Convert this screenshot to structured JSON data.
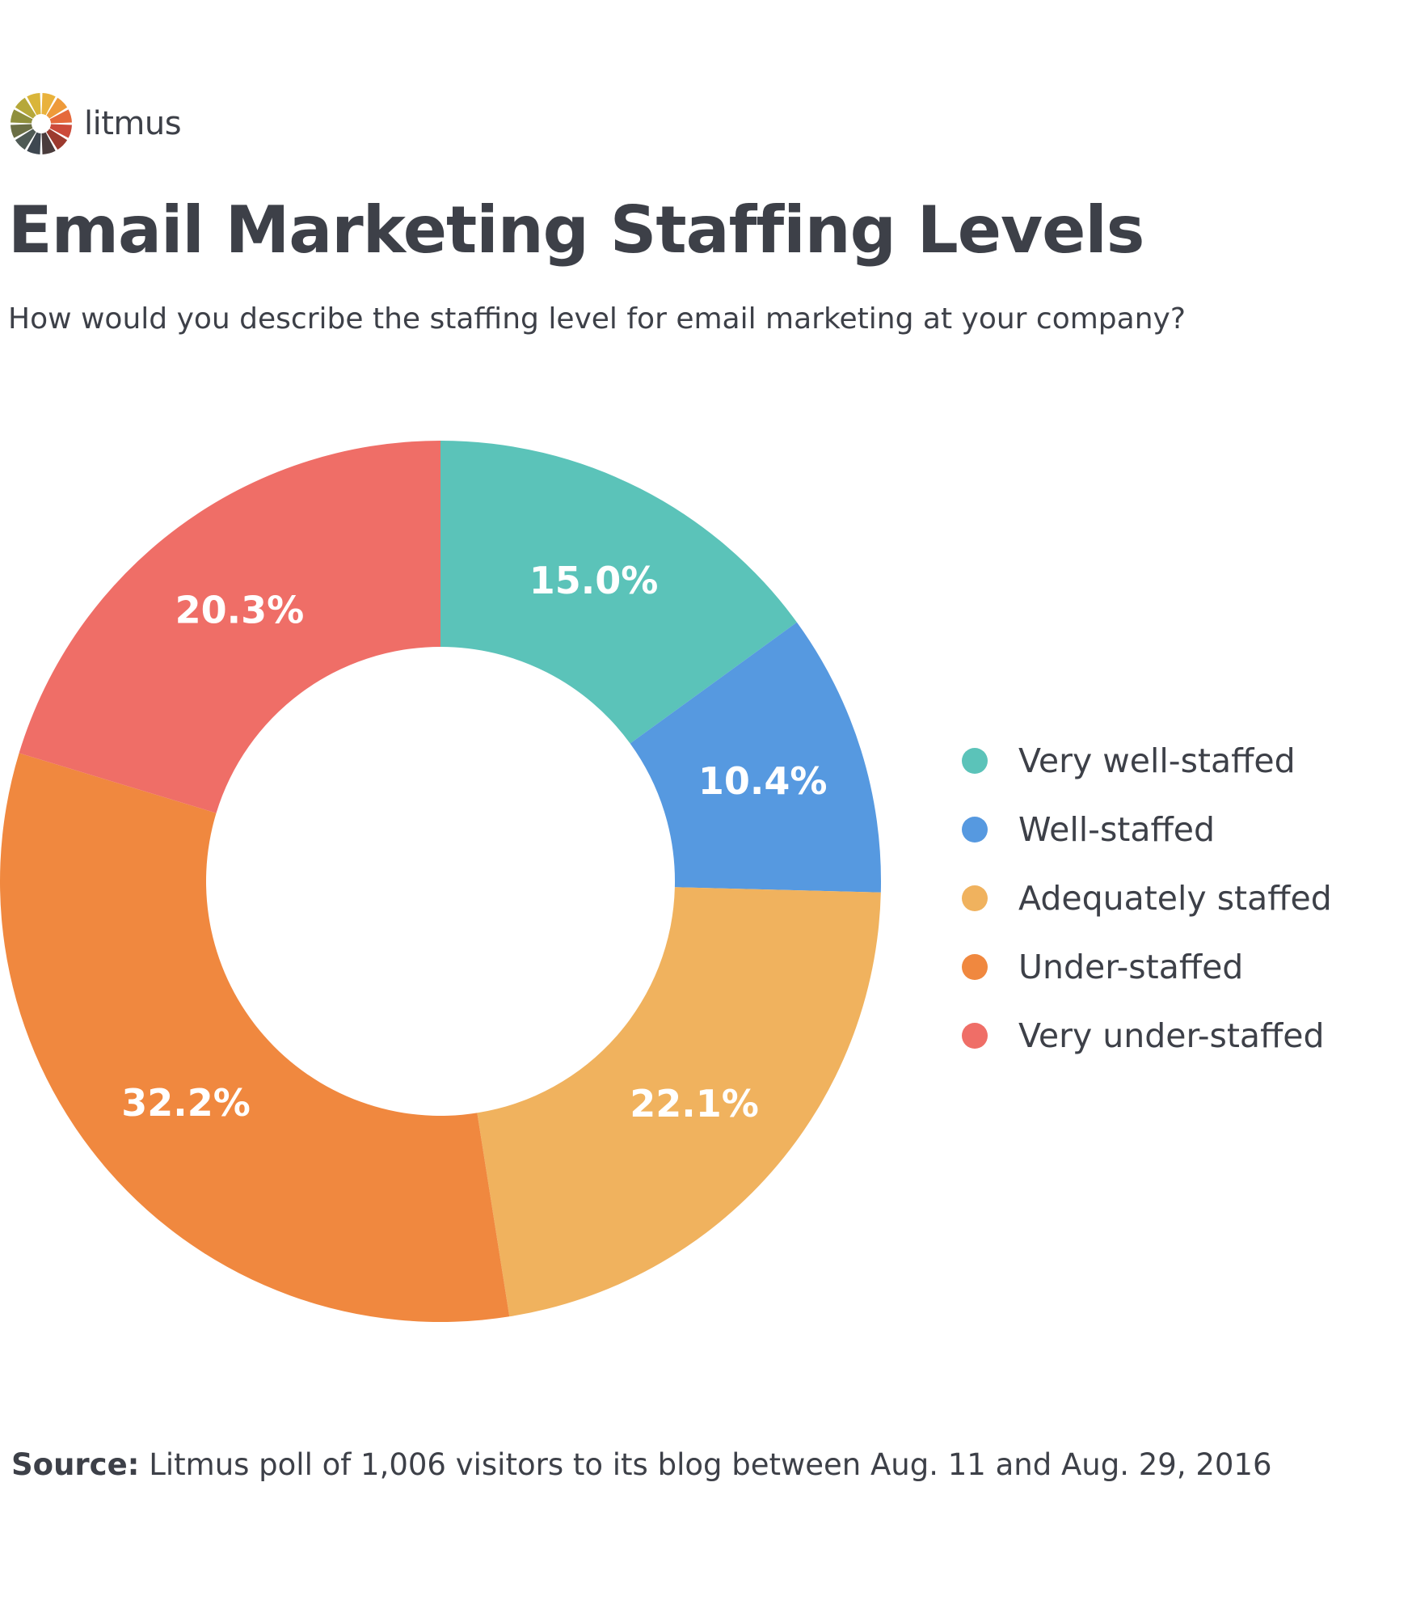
{
  "brand": {
    "name": "litmus",
    "logo_colors": [
      "#e9b23c",
      "#ee9a3a",
      "#e5693b",
      "#cc4a3a",
      "#9c3a2e",
      "#4a3c3c",
      "#3e4750",
      "#4f5a55",
      "#6b6f45",
      "#8f8f3c",
      "#b6a83a",
      "#d9b53a"
    ]
  },
  "header": {
    "title": "Email Marketing Staffing Levels",
    "subtitle": "How would you describe the staffing level for email marketing at your company?"
  },
  "chart_data": {
    "type": "pie",
    "variant": "donut",
    "title": "Email Marketing Staffing Levels",
    "categories": [
      "Very well-staffed",
      "Well-staffed",
      "Adequately staffed",
      "Under-staffed",
      "Very under-staffed"
    ],
    "values": [
      15.0,
      10.4,
      22.1,
      32.2,
      20.3
    ],
    "value_labels": [
      "15.0%",
      "10.4%",
      "22.1%",
      "32.2%",
      "20.3%"
    ],
    "colors": [
      "#5bc3b9",
      "#5699e0",
      "#f0b25e",
      "#f0883f",
      "#ef6e67"
    ],
    "start_angle_deg": 0,
    "direction": "clockwise",
    "legend_position": "right"
  },
  "footer": {
    "source_label": "Source:",
    "source_text": " Litmus poll of 1,006 visitors to its blog between Aug. 11 and Aug. 29, 2016"
  }
}
